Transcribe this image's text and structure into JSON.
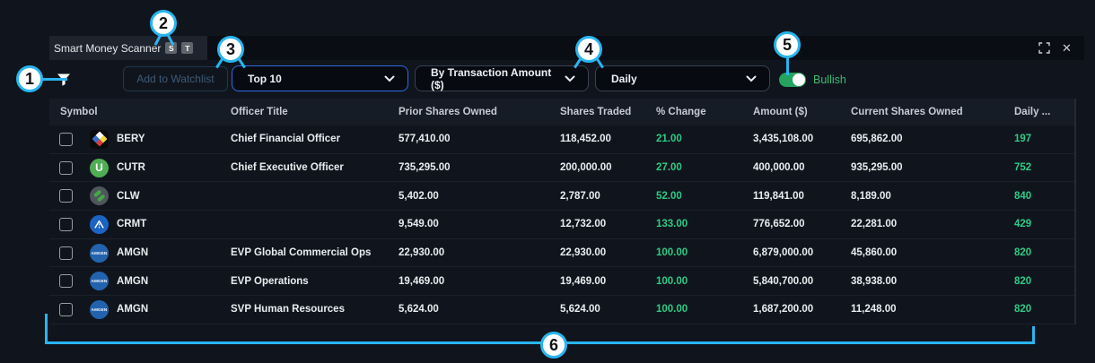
{
  "panel": {
    "title": "Smart Money Scanner",
    "badges": [
      {
        "label": "S"
      },
      {
        "label": "T"
      }
    ],
    "window_controls": {
      "close_glyph": "✕"
    }
  },
  "toolbar": {
    "watchlist_button": "Add to Watchlist",
    "rank_dropdown": "Top 10",
    "sort_dropdown": "By Transaction Amount ($)",
    "period_dropdown": "Daily",
    "sentiment_toggle": {
      "label": "Bullish",
      "state": "on"
    }
  },
  "table": {
    "columns": [
      "Symbol",
      "Officer Title",
      "Prior Shares Owned",
      "Shares Traded",
      "% Change",
      "Amount ($)",
      "Current Shares Owned",
      "Daily ..."
    ],
    "rows": [
      {
        "symbol": "BERY",
        "icon": "bery",
        "icon_text": "",
        "officer_title": "Chief Financial Officer",
        "prior_shares_owned": "577,410.00",
        "shares_traded": "118,452.00",
        "pct_change": "21.00",
        "amount": "3,435,108.00",
        "current_shares_owned": "695,862.00",
        "daily": "197"
      },
      {
        "symbol": "CUTR",
        "icon": "cutr",
        "icon_text": "U",
        "officer_title": "Chief Executive Officer",
        "prior_shares_owned": "735,295.00",
        "shares_traded": "200,000.00",
        "pct_change": "27.00",
        "amount": "400,000.00",
        "current_shares_owned": "935,295.00",
        "daily": "752"
      },
      {
        "symbol": "CLW",
        "icon": "clw",
        "icon_text": "",
        "officer_title": "",
        "prior_shares_owned": "5,402.00",
        "shares_traded": "2,787.00",
        "pct_change": "52.00",
        "amount": "119,841.00",
        "current_shares_owned": "8,189.00",
        "daily": "840"
      },
      {
        "symbol": "CRMT",
        "icon": "crmt",
        "icon_text": "",
        "officer_title": "",
        "prior_shares_owned": "9,549.00",
        "shares_traded": "12,732.00",
        "pct_change": "133.00",
        "amount": "776,652.00",
        "current_shares_owned": "22,281.00",
        "daily": "429"
      },
      {
        "symbol": "AMGN",
        "icon": "amgn",
        "icon_text": "AMGEN",
        "officer_title": "EVP Global Commercial Ops",
        "prior_shares_owned": "22,930.00",
        "shares_traded": "22,930.00",
        "pct_change": "100.00",
        "amount": "6,879,000.00",
        "current_shares_owned": "45,860.00",
        "daily": "820"
      },
      {
        "symbol": "AMGN",
        "icon": "amgn",
        "icon_text": "AMGEN",
        "officer_title": "EVP Operations",
        "prior_shares_owned": "19,469.00",
        "shares_traded": "19,469.00",
        "pct_change": "100.00",
        "amount": "5,840,700.00",
        "current_shares_owned": "38,938.00",
        "daily": "820"
      },
      {
        "symbol": "AMGN",
        "icon": "amgn",
        "icon_text": "AMGEN",
        "officer_title": "SVP Human Resources",
        "prior_shares_owned": "5,624.00",
        "shares_traded": "5,624.00",
        "pct_change": "100.00",
        "amount": "1,687,200.00",
        "current_shares_owned": "11,248.00",
        "daily": "820"
      }
    ]
  },
  "annotations": {
    "callouts": [
      {
        "number": "1"
      },
      {
        "number": "2"
      },
      {
        "number": "3"
      },
      {
        "number": "4"
      },
      {
        "number": "5"
      },
      {
        "number": "6"
      }
    ]
  },
  "colors": {
    "annotation_cyan": "#29b5f0",
    "positive_green": "#2ecb84",
    "focused_border_blue": "#2e6be6",
    "toggle_green": "#23a45f"
  }
}
